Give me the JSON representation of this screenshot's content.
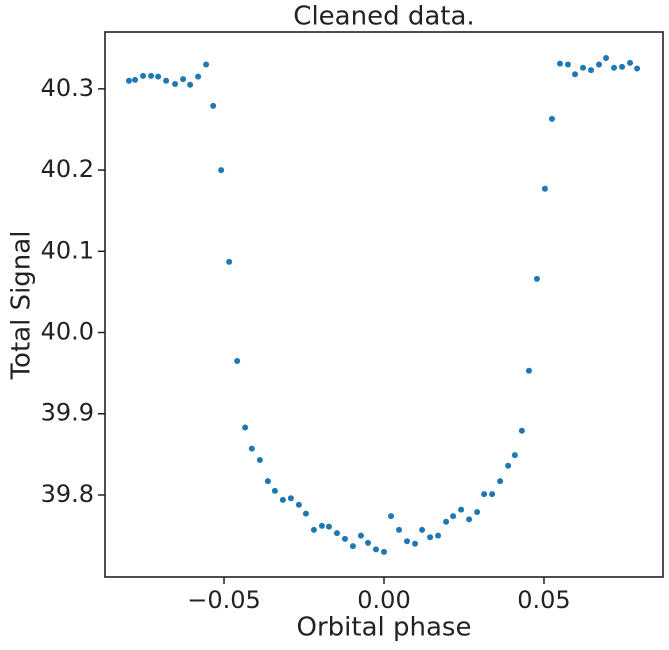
{
  "chart_data": {
    "type": "scatter",
    "title": "Cleaned data.",
    "xlabel": "Orbital phase",
    "ylabel": "Total Signal",
    "color": "#1f77b4",
    "xlim": [
      -0.0872,
      0.0872
    ],
    "ylim": [
      39.699,
      40.37
    ],
    "xticks": [
      {
        "value": -0.05,
        "label": "−0.05"
      },
      {
        "value": 0,
        "label": "0.00"
      },
      {
        "value": 0.05,
        "label": "0.05"
      }
    ],
    "yticks": [
      40.3,
      40.2,
      40.1,
      {
        "value": 40.0,
        "label": "40.0"
      },
      39.9,
      39.8
    ],
    "x": [
      -0.0797,
      -0.0778,
      -0.0753,
      -0.0728,
      -0.0706,
      -0.0681,
      -0.0653,
      -0.0628,
      -0.0606,
      -0.0581,
      -0.0556,
      -0.0534,
      -0.0509,
      -0.0484,
      -0.0459,
      -0.0434,
      -0.0413,
      -0.0388,
      -0.0363,
      -0.0341,
      -0.0316,
      -0.0291,
      -0.0266,
      -0.0244,
      -0.0219,
      -0.0194,
      -0.0172,
      -0.0147,
      -0.0122,
      -0.0097,
      -0.0072,
      -0.005,
      -0.0025,
      0.0,
      0.0022,
      0.0047,
      0.0072,
      0.0097,
      0.0119,
      0.0144,
      0.0169,
      0.0194,
      0.0216,
      0.0241,
      0.0266,
      0.0291,
      0.0313,
      0.0338,
      0.0363,
      0.0388,
      0.0409,
      0.0431,
      0.0453,
      0.0478,
      0.0503,
      0.0525,
      0.055,
      0.0575,
      0.0597,
      0.0622,
      0.0647,
      0.0672,
      0.0694,
      0.0719,
      0.0744,
      0.0769,
      0.0791
    ],
    "values": [
      40.31,
      40.311,
      40.316,
      40.316,
      40.315,
      40.31,
      40.306,
      40.312,
      40.305,
      40.315,
      40.33,
      40.279,
      40.2,
      40.087,
      39.965,
      39.883,
      39.857,
      39.843,
      39.817,
      39.805,
      39.794,
      39.796,
      39.788,
      39.777,
      39.757,
      39.762,
      39.761,
      39.753,
      39.746,
      39.737,
      39.75,
      39.741,
      39.733,
      39.73,
      39.774,
      39.757,
      39.743,
      39.74,
      39.757,
      39.748,
      39.75,
      39.767,
      39.774,
      39.782,
      39.77,
      39.779,
      39.801,
      39.801,
      39.817,
      39.836,
      39.849,
      39.879,
      39.953,
      40.066,
      40.177,
      40.263,
      40.331,
      40.33,
      40.318,
      40.326,
      40.323,
      40.33,
      40.338,
      40.326,
      40.327,
      40.332,
      40.325
    ]
  }
}
